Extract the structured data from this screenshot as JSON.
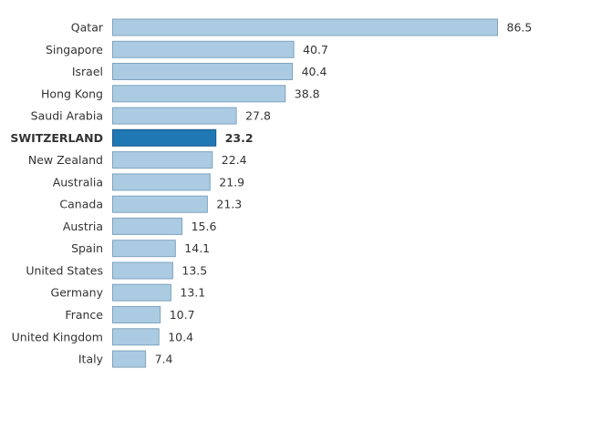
{
  "chart_data": {
    "type": "bar",
    "orientation": "horizontal",
    "categories": [
      "Qatar",
      "Singapore",
      "Israel",
      "Hong Kong",
      "Saudi Arabia",
      "SWITZERLAND",
      "New Zealand",
      "Australia",
      "Canada",
      "Austria",
      "Spain",
      "United States",
      "Germany",
      "France",
      "United Kingdom",
      "Italy"
    ],
    "values": [
      86.5,
      40.7,
      40.4,
      38.8,
      27.8,
      23.2,
      22.4,
      21.9,
      21.3,
      15.6,
      14.1,
      13.5,
      13.1,
      10.7,
      10.4,
      7.4
    ],
    "highlight": "SWITZERLAND",
    "xlim": [
      0,
      86.5
    ],
    "grid": false,
    "colors": {
      "bar": "#abcbe3",
      "bar_border": "#7fa3bd",
      "highlight": "#1f77b4",
      "highlight_border": "#1a5a8c",
      "text": "#333333"
    }
  }
}
